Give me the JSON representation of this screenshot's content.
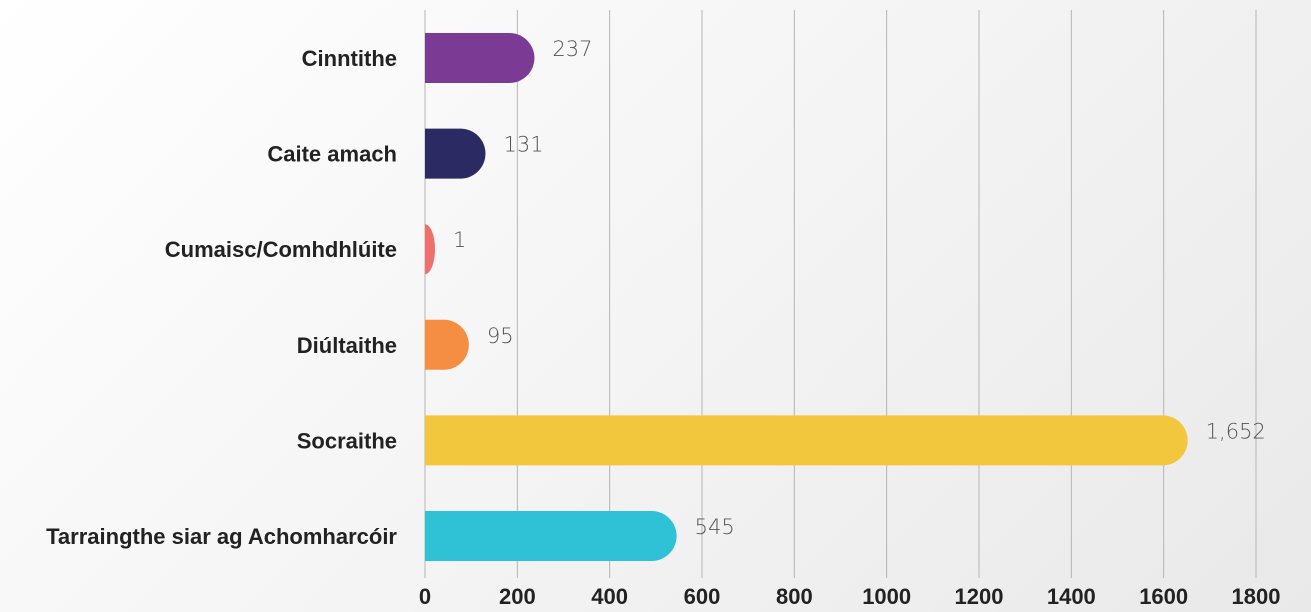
{
  "chart_data": {
    "type": "bar",
    "orientation": "horizontal",
    "categories": [
      "Cinntithe",
      "Caite amach",
      "Cumaisc/Comhdhlúite",
      "Diúltaithe",
      "Socraithe",
      "Tarraingthe siar ag Achomharcóir"
    ],
    "values": [
      237,
      131,
      1,
      95,
      1652,
      545
    ],
    "value_labels": [
      "237",
      "131",
      "1",
      "95",
      "1,652",
      "545"
    ],
    "colors": [
      "#7b3b94",
      "#2b2a63",
      "#ef6f6c",
      "#f58d42",
      "#f2c73d",
      "#2fc2d6"
    ],
    "xlim": [
      0,
      1800
    ],
    "xticks": [
      0,
      200,
      400,
      600,
      800,
      1000,
      1200,
      1400,
      1600,
      1800
    ],
    "grid": true,
    "legend": "none"
  }
}
